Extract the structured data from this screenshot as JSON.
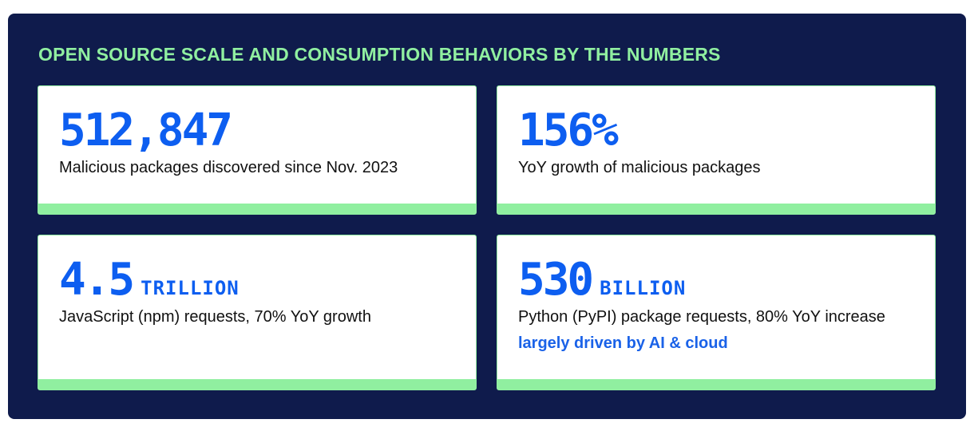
{
  "title": "OPEN SOURCE SCALE AND CONSUMPTION BEHAVIORS BY THE NUMBERS",
  "colors": {
    "panel_background": "#0f1b4c",
    "accent_green": "#90efa0",
    "stat_blue": "#0d5ef0",
    "text_dark": "#111111"
  },
  "stats": [
    {
      "value": "512,847",
      "unit": "",
      "description": "Malicious packages discovered since Nov. 2023",
      "note": ""
    },
    {
      "value": "156%",
      "unit": "",
      "description": "YoY growth of malicious packages",
      "note": ""
    },
    {
      "value": "4.5",
      "unit": "TRILLION",
      "description": "JavaScript (npm) requests, 70% YoY growth",
      "note": ""
    },
    {
      "value": "530",
      "unit": "BILLION",
      "description": "Python (PyPI) package requests, 80% YoY increase",
      "note": "largely driven by AI & cloud"
    }
  ]
}
